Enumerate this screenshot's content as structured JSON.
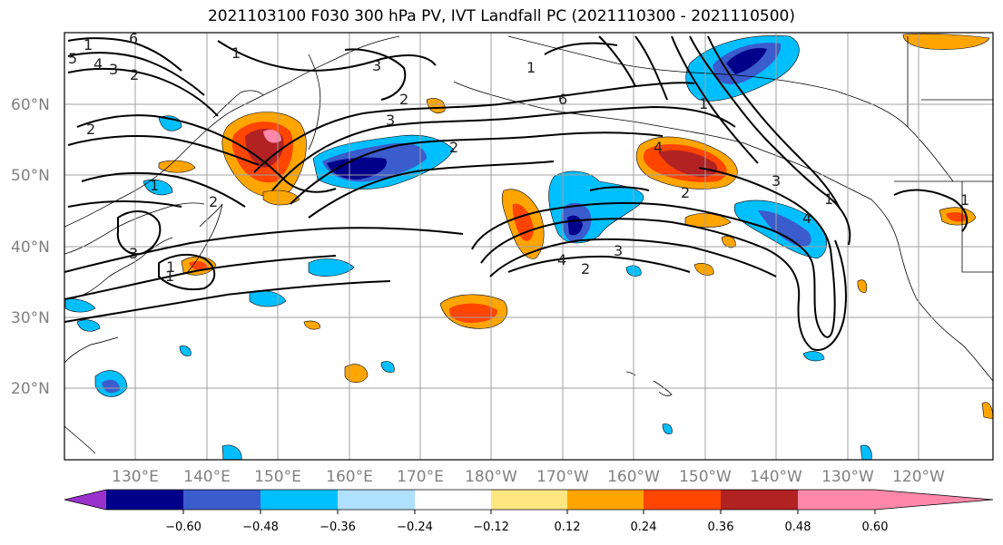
{
  "title": "2021103100 F030 300 hPa PV, IVT Landfall PC (2021110300 - 2021110500)",
  "lat_labels": [
    "60°N",
    "50°N",
    "40°N",
    "30°N",
    "20°N"
  ],
  "lon_labels": [
    "130°E",
    "140°E",
    "150°E",
    "160°E",
    "170°E",
    "180°W",
    "170°W",
    "160°W",
    "150°W",
    "140°W",
    "130°W",
    "120°W"
  ],
  "colorbar": {
    "ticks": [
      "−0.60",
      "−0.48",
      "−0.36",
      "−0.24",
      "−0.12",
      "0.12",
      "0.24",
      "0.36",
      "0.48",
      "0.60"
    ],
    "colors": [
      "#9932CC",
      "#00008B",
      "#3A5CCD",
      "#00BFFF",
      "#B0E0FF",
      "#FFFFFF",
      "#FFE680",
      "#FFA500",
      "#FF4500",
      "#B22222",
      "#FF88AA"
    ]
  },
  "contour_labels": [
    "1",
    "2",
    "3",
    "4",
    "5",
    "6",
    "1",
    "2",
    "3",
    "2",
    "1",
    "6",
    "4",
    "3",
    "2",
    "1",
    "4",
    "2",
    "3",
    "4",
    "2",
    "3",
    "1",
    "1",
    "2",
    "3",
    "1",
    "1",
    "1"
  ]
}
